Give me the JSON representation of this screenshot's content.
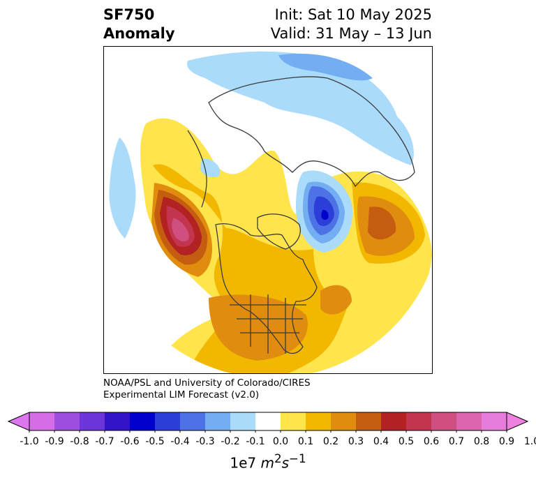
{
  "header": {
    "variable": "SF750",
    "quantity": "Anomaly",
    "init": "Init: Sat 10 May 2025",
    "valid": "Valid: 31 May – 13 Jun"
  },
  "credit": {
    "line1": "NOAA/PSL and University of Colorado/CIRES",
    "line2": "Experimental LIM Forecast (v2.0)"
  },
  "colorbar": {
    "levels": [
      "-1.0",
      "-0.9",
      "-0.8",
      "-0.7",
      "-0.6",
      "-0.5",
      "-0.4",
      "-0.3",
      "-0.2",
      "-0.1",
      "0.0",
      "0.1",
      "0.2",
      "0.3",
      "0.4",
      "0.5",
      "0.6",
      "0.7",
      "0.8",
      "0.9",
      "1.0"
    ],
    "colors": [
      "#d56ee6",
      "#9f4fe0",
      "#6b35d9",
      "#3313c9",
      "#0000cc",
      "#2b3fd8",
      "#4d72e6",
      "#74aef2",
      "#aadbfb",
      "#ffffff",
      "#ffe44c",
      "#f2b800",
      "#e08c0e",
      "#c55d10",
      "#b22222",
      "#c3344f",
      "#cf4f80",
      "#da64ad",
      "#e67cdc"
    ],
    "under_color": "#dd77ee",
    "over_color": "#ee80e0",
    "units_prefix": "1e7 ",
    "units_m": "m",
    "units_m_exp": "2",
    "units_s": "s",
    "units_s_exp": "−1"
  },
  "map": {
    "projection": "north-polar-stereographic",
    "land_outline_color": "#3a3a3a"
  }
}
